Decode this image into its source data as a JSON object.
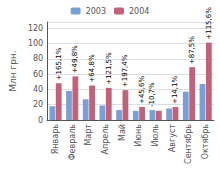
{
  "chart_data": {
    "type": "bar",
    "categories": [
      "Январь",
      "Февраль",
      "Март",
      "Апрель",
      "Май",
      "Июнь",
      "Июль",
      "Август",
      "Сентябрь",
      "Октябрь"
    ],
    "series": [
      {
        "name": "2003",
        "color": "#7b9fd4",
        "values": [
          18,
          38,
          27,
          19,
          13,
          12,
          13,
          15,
          37,
          47
        ]
      },
      {
        "name": "2004",
        "color": "#c0627a",
        "values": [
          48,
          57,
          45,
          42,
          39,
          17,
          12,
          17,
          69,
          101
        ]
      }
    ],
    "annotations": [
      "+165,1%",
      "+49,8%",
      "+64,8%",
      "+121,5%",
      "+197,4%",
      "+45,6%",
      "-10,7%",
      "+14,1%",
      "+87,5%",
      "+115,6%"
    ],
    "ylabel": "Млн грн.",
    "ylim": [
      0,
      128
    ],
    "yticks": [
      0,
      20,
      40,
      60,
      80,
      100,
      120
    ],
    "grid": true,
    "legend": "top"
  }
}
